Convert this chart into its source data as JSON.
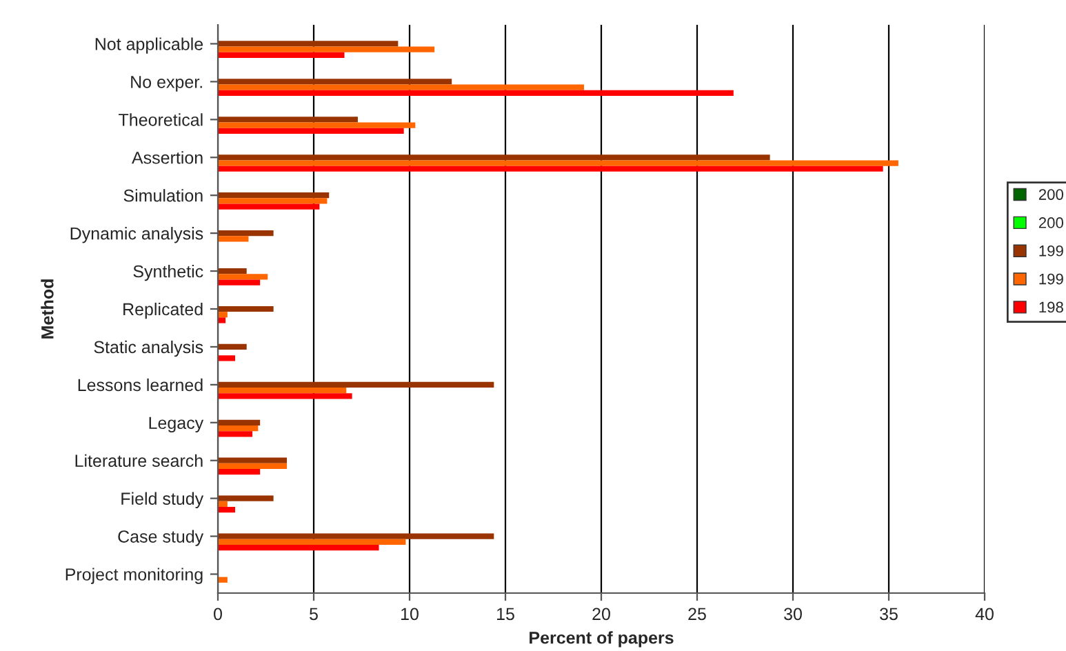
{
  "chart_data": {
    "type": "bar",
    "orientation": "horizontal",
    "xlabel": "Percent of papers",
    "ylabel": "Method",
    "categories": [
      "Not applicable",
      "No exper.",
      "Theoretical",
      "Assertion",
      "Simulation",
      "Dynamic analysis",
      "Synthetic",
      "Replicated",
      "Static analysis",
      "Lessons learned",
      "Legacy",
      "Literature search",
      "Field study",
      "Case study",
      "Project monitoring"
    ],
    "series": [
      {
        "name": "200",
        "color": "#006600",
        "values": [
          null,
          null,
          null,
          null,
          null,
          null,
          null,
          null,
          null,
          null,
          null,
          null,
          null,
          null,
          null
        ]
      },
      {
        "name": "200",
        "color": "#00ff00",
        "values": [
          null,
          null,
          null,
          null,
          null,
          null,
          null,
          null,
          null,
          null,
          null,
          null,
          null,
          null,
          null
        ]
      },
      {
        "name": "199",
        "color": "#993300",
        "values": [
          9.4,
          12.2,
          7.3,
          28.8,
          5.8,
          2.9,
          1.5,
          2.9,
          1.5,
          14.4,
          2.2,
          3.6,
          2.9,
          14.4,
          null
        ]
      },
      {
        "name": "199",
        "color": "#ff6600",
        "values": [
          11.3,
          19.1,
          10.3,
          35.5,
          5.7,
          1.6,
          2.6,
          0.5,
          null,
          6.7,
          2.1,
          3.6,
          0.5,
          9.8,
          0.5
        ]
      },
      {
        "name": "198",
        "color": "#ff0000",
        "values": [
          6.6,
          26.9,
          9.7,
          34.7,
          5.3,
          null,
          2.2,
          0.4,
          0.9,
          7.0,
          1.8,
          2.2,
          0.9,
          8.4,
          null
        ]
      }
    ],
    "xlim": [
      0,
      40
    ],
    "xticks": [
      0,
      5,
      10,
      15,
      20,
      25,
      30,
      35,
      40
    ],
    "grid": "x",
    "legend": "right"
  }
}
